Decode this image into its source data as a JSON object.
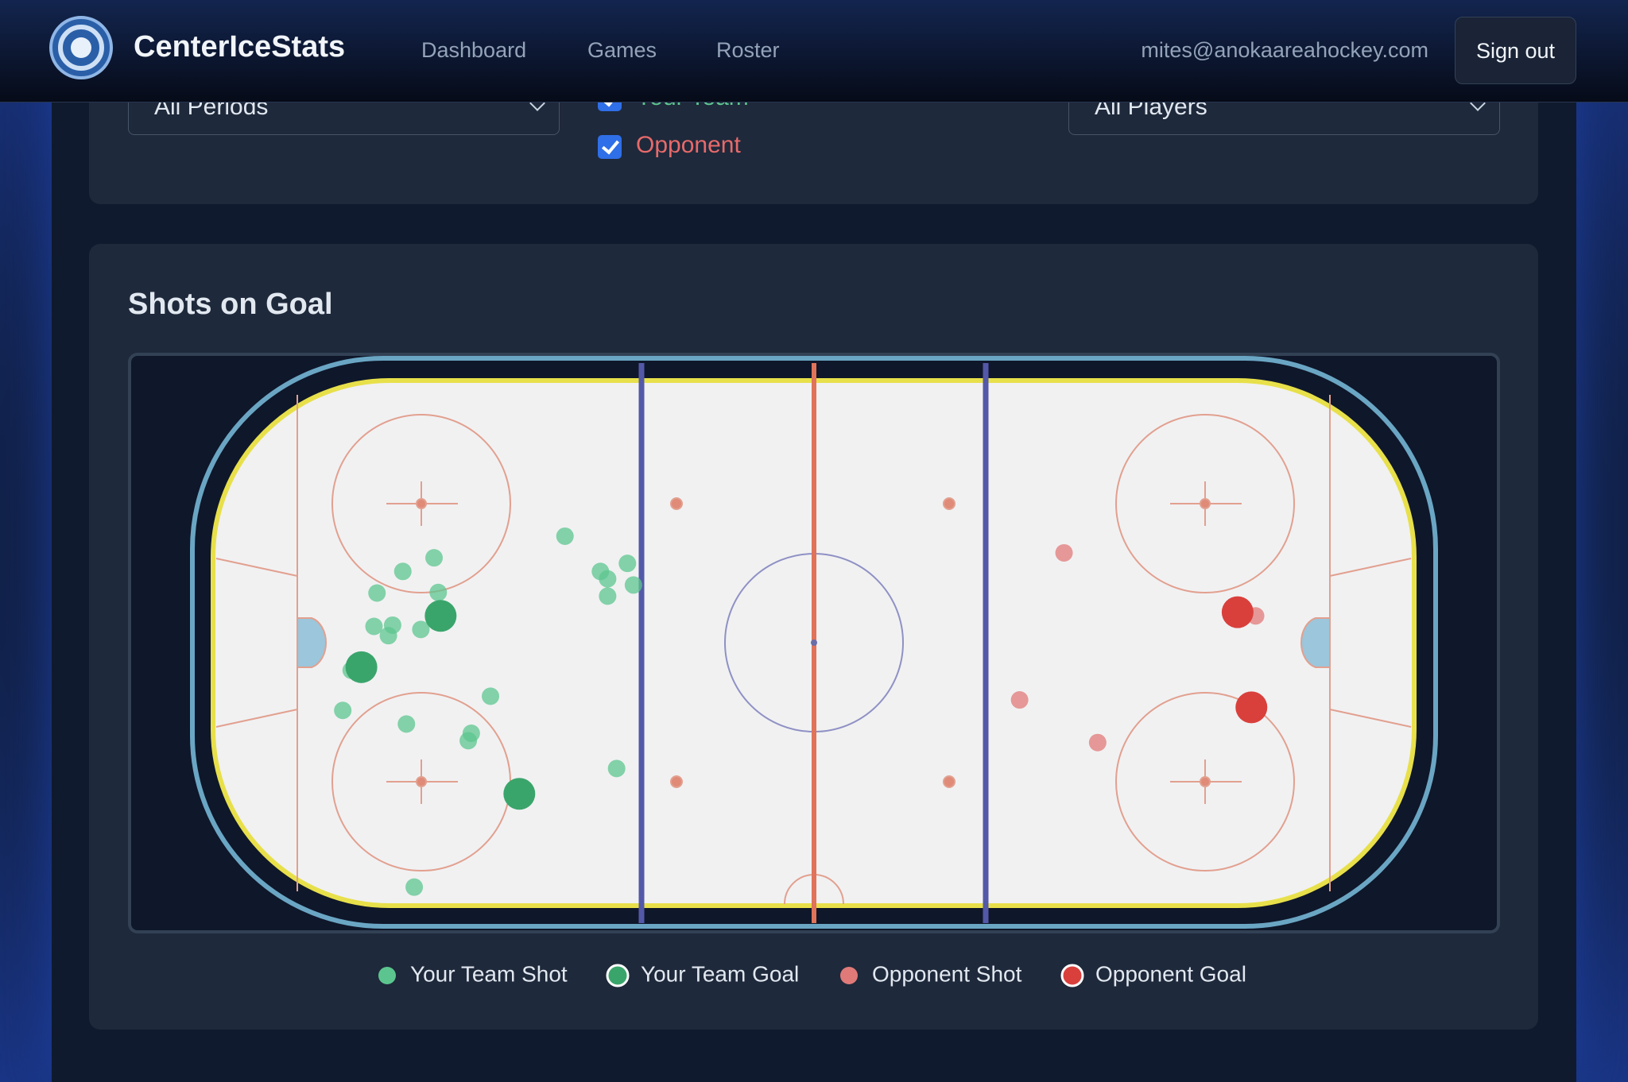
{
  "header": {
    "brand": "CenterIceStats",
    "nav": [
      "Dashboard",
      "Games",
      "Roster"
    ],
    "email": "mites@anokaareahockey.com",
    "sign_out": "Sign out"
  },
  "filters": {
    "period": "All Periods",
    "teams": [
      "Your Team",
      "Opponent"
    ],
    "player": "All Players"
  },
  "chart_data": {
    "type": "scatter",
    "title": "Shots on Goal",
    "xlim": [
      0,
      200
    ],
    "ylim": [
      0,
      85
    ],
    "series": [
      {
        "name": "Your Team Shot",
        "color": "#5cc58f",
        "size": "small",
        "x": [
          58.6,
          36.8,
          31.6,
          27.3,
          37.5,
          29.9,
          26.8,
          29.2,
          34.6,
          23.0,
          65.7,
          64.5,
          69.0,
          70.0,
          65.7,
          46.2,
          21.6,
          32.2,
          43.0,
          42.5,
          67.2,
          33.5
        ],
        "y": [
          25.2,
          28.7,
          30.9,
          34.4,
          34.3,
          39.6,
          39.8,
          41.3,
          40.3,
          46.9,
          32.1,
          30.9,
          29.6,
          33.1,
          34.9,
          51.1,
          53.4,
          55.6,
          57.1,
          58.3,
          62.8,
          82.0
        ]
      },
      {
        "name": "Your Team Goal",
        "color": "#3aa56b",
        "size": "large",
        "x": [
          37.9,
          24.7,
          51.0
        ],
        "y": [
          38.1,
          46.4,
          66.9
        ]
      },
      {
        "name": "Opponent Shot",
        "color": "#e07a78",
        "size": "small",
        "x": [
          141.7,
          173.6,
          134.3,
          147.3
        ],
        "y": [
          27.9,
          38.1,
          51.7,
          58.6
        ]
      },
      {
        "name": "Opponent Goal",
        "color": "#d9403c",
        "size": "large",
        "x": [
          170.6,
          172.9
        ],
        "y": [
          37.5,
          52.9
        ]
      }
    ]
  }
}
